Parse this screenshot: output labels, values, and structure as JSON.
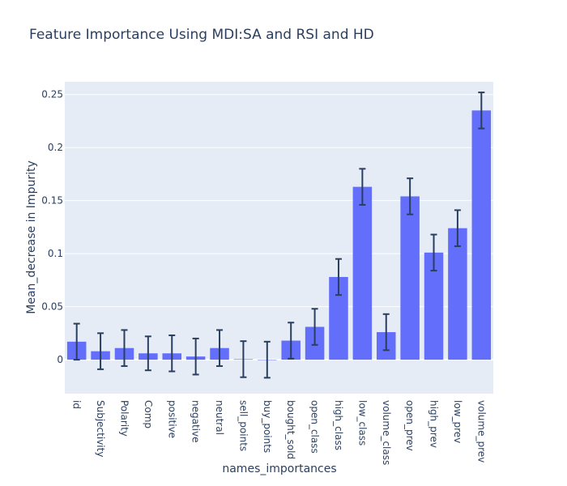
{
  "chart_data": {
    "type": "bar",
    "title": "Feature Importance Using MDI:SA and RSI and HD",
    "xlabel": "names_importances",
    "ylabel": "Mean_decrease in Impurity",
    "categories": [
      "id",
      "Subjectivity",
      "Polarity",
      "Comp",
      "positive",
      "negative",
      "neutral",
      "sell_points",
      "buy_points",
      "bought_sold",
      "open_class",
      "high_class",
      "low_class",
      "volume_class",
      "open_prev",
      "high_prev",
      "low_prev",
      "volume_prev"
    ],
    "values": [
      0.017,
      0.008,
      0.011,
      0.006,
      0.006,
      0.003,
      0.011,
      0.0005,
      0.0,
      0.018,
      0.031,
      0.078,
      0.163,
      0.026,
      0.154,
      0.101,
      0.124,
      0.235
    ],
    "errors": [
      0.017,
      0.017,
      0.017,
      0.016,
      0.017,
      0.017,
      0.017,
      0.017,
      0.017,
      0.017,
      0.017,
      0.017,
      0.017,
      0.017,
      0.017,
      0.017,
      0.017,
      0.017
    ],
    "ylim": [
      -0.032,
      0.262
    ],
    "yticks": [
      0,
      0.05,
      0.1,
      0.15,
      0.2,
      0.25
    ],
    "ytick_labels": [
      "0",
      "0.05",
      "0.1",
      "0.15",
      "0.2",
      "0.25"
    ],
    "grid": true,
    "colors": {
      "bar": "#636efa",
      "error": "#2a3f5f",
      "plot_bg": "#e5ecf6",
      "grid": "#ffffff",
      "text": "#2a3f5f"
    }
  }
}
